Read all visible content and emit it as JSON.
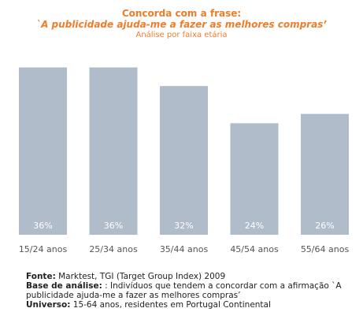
{
  "chart_data": {
    "type": "bar",
    "title": "Concorda com a frase:",
    "subtitle": "`A publicidade ajuda-me a fazer as melhores compras’",
    "caption": "Análise por faixa etária",
    "categories": [
      "15/24 anos",
      "25/34 anos",
      "35/44 anos",
      "45/54 anos",
      "55/64 anos"
    ],
    "values": [
      36,
      36,
      32,
      24,
      26
    ],
    "value_labels": [
      "36%",
      "36%",
      "32%",
      "24%",
      "26%"
    ],
    "ylim": [
      0,
      40
    ],
    "grid": false,
    "legend": "none",
    "bar_color": "#b1bccb",
    "label_color": "#ffffff",
    "title_color": "#f07c2a"
  },
  "footer": {
    "source_label": "Fonte:",
    "source_text": " Marktest, TGI (Target Group Index) 2009",
    "base_label": "Base de análise:",
    "base_text": "  : Indivíduos que tendem a concordar com a afirmação `A publicidade ajuda-me a fazer as melhores compras’",
    "universe_label": "Universo:",
    "universe_text": " 15-64 anos, residentes em Portugal Continental"
  }
}
